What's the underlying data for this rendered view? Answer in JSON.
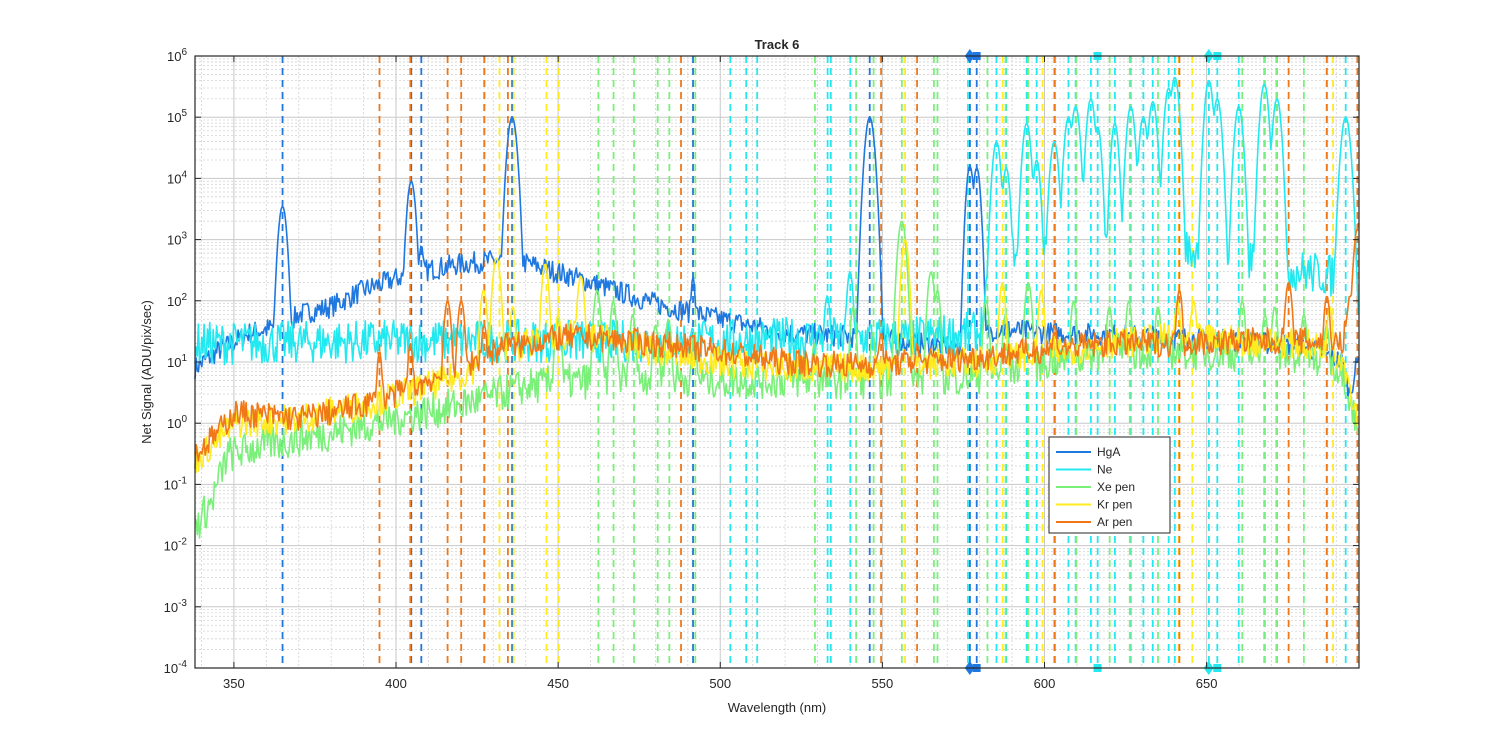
{
  "chart_data": {
    "type": "line",
    "title": "Track 6",
    "xlabel": "Wavelength (nm)",
    "ylabel": "Net Signal (ADU/pix/sec)",
    "xlim": [
      338,
      697
    ],
    "ylim": [
      0.0001,
      1000000
    ],
    "y_scale": "log",
    "grid": true,
    "legend_position": "lower-right",
    "x_ticks": [
      350,
      400,
      450,
      500,
      550,
      600,
      650
    ],
    "y_ticks": [
      {
        "value": 0.0001,
        "base": "10",
        "exp": "-4"
      },
      {
        "value": 0.001,
        "base": "10",
        "exp": "-3"
      },
      {
        "value": 0.01,
        "base": "10",
        "exp": "-2"
      },
      {
        "value": 0.1,
        "base": "10",
        "exp": "-1"
      },
      {
        "value": 1,
        "base": "10",
        "exp": "0"
      },
      {
        "value": 10,
        "base": "10",
        "exp": "1"
      },
      {
        "value": 100,
        "base": "10",
        "exp": "2"
      },
      {
        "value": 1000,
        "base": "10",
        "exp": "3"
      },
      {
        "value": 10000,
        "base": "10",
        "exp": "4"
      },
      {
        "value": 100000,
        "base": "10",
        "exp": "5"
      },
      {
        "value": 1000000,
        "base": "10",
        "exp": "6"
      }
    ],
    "series": [
      {
        "name": "HgA",
        "color": "#1f77e0",
        "baseline": [
          [
            338,
            8
          ],
          [
            345,
            15
          ],
          [
            355,
            30
          ],
          [
            366,
            40
          ],
          [
            370,
            60
          ],
          [
            380,
            80
          ],
          [
            390,
            150
          ],
          [
            402,
            250
          ],
          [
            410,
            320
          ],
          [
            420,
            400
          ],
          [
            430,
            450
          ],
          [
            436,
            470
          ],
          [
            445,
            350
          ],
          [
            460,
            200
          ],
          [
            480,
            90
          ],
          [
            500,
            50
          ],
          [
            520,
            30
          ],
          [
            546,
            25
          ],
          [
            560,
            20
          ],
          [
            575,
            18
          ],
          [
            585,
            35
          ],
          [
            600,
            30
          ],
          [
            620,
            28
          ],
          [
            640,
            25
          ],
          [
            660,
            22
          ],
          [
            680,
            18
          ],
          [
            692,
            10
          ],
          [
            694,
            3
          ],
          [
            697,
            12
          ]
        ],
        "peaks": [
          [
            365.0,
            3500,
            0.9
          ],
          [
            404.7,
            9000,
            0.9
          ],
          [
            407.8,
            800,
            0.6
          ],
          [
            435.8,
            100000,
            1.0
          ],
          [
            491.6,
            250,
            0.5
          ],
          [
            546.1,
            100000,
            1.0
          ],
          [
            577.0,
            16000,
            0.8
          ],
          [
            579.1,
            15000,
            0.8
          ]
        ],
        "noise": 0.18
      },
      {
        "name": "Ne",
        "color": "#22e8f0",
        "baseline": [
          [
            338,
            20
          ],
          [
            400,
            22
          ],
          [
            500,
            22
          ],
          [
            530,
            25
          ],
          [
            560,
            25
          ],
          [
            580,
            30
          ],
          [
            585,
            600
          ],
          [
            600,
            700
          ],
          [
            620,
            700
          ],
          [
            640,
            700
          ],
          [
            650,
            600
          ],
          [
            660,
            500
          ],
          [
            680,
            300
          ],
          [
            690,
            250
          ],
          [
            697,
            20
          ]
        ],
        "peaks": [
          [
            533,
            120,
            0.7
          ],
          [
            540,
            300,
            0.7
          ],
          [
            585.2,
            40000,
            0.9
          ],
          [
            588.2,
            15000,
            0.8
          ],
          [
            594.5,
            80000,
            0.9
          ],
          [
            597.6,
            20000,
            0.8
          ],
          [
            603.0,
            40000,
            0.9
          ],
          [
            607.4,
            100000,
            0.9
          ],
          [
            609.6,
            150000,
            0.9
          ],
          [
            614.3,
            200000,
            0.9
          ],
          [
            616.4,
            70000,
            0.8
          ],
          [
            621.7,
            80000,
            0.8
          ],
          [
            626.6,
            150000,
            0.9
          ],
          [
            630.5,
            100000,
            0.9
          ],
          [
            633.4,
            180000,
            0.9
          ],
          [
            638.3,
            300000,
            0.9
          ],
          [
            640.2,
            450000,
            0.9
          ],
          [
            650.7,
            400000,
            0.9
          ],
          [
            653.3,
            200000,
            0.9
          ],
          [
            659.9,
            150000,
            0.9
          ],
          [
            667.8,
            350000,
            0.9
          ],
          [
            671.7,
            200000,
            0.9
          ],
          [
            692.9,
            100000,
            1.0
          ]
        ],
        "noise": 0.35
      },
      {
        "name": "Xe pen",
        "color": "#7af07a",
        "baseline": [
          [
            338,
            0.02
          ],
          [
            343,
            0.05
          ],
          [
            348,
            0.3
          ],
          [
            360,
            0.45
          ],
          [
            380,
            0.7
          ],
          [
            400,
            1.2
          ],
          [
            420,
            2
          ],
          [
            440,
            4
          ],
          [
            460,
            5
          ],
          [
            480,
            6
          ],
          [
            500,
            5
          ],
          [
            520,
            5
          ],
          [
            540,
            5
          ],
          [
            560,
            5
          ],
          [
            580,
            6
          ],
          [
            600,
            10
          ],
          [
            620,
            15
          ],
          [
            640,
            15
          ],
          [
            660,
            14
          ],
          [
            680,
            12
          ],
          [
            692,
            8
          ],
          [
            697,
            0.6
          ]
        ],
        "peaks": [
          [
            450,
            50,
            0.8
          ],
          [
            462,
            150,
            0.8
          ],
          [
            467,
            100,
            0.7
          ],
          [
            473,
            60,
            0.7
          ],
          [
            480,
            40,
            0.7
          ],
          [
            484,
            50,
            0.7
          ],
          [
            492,
            30,
            0.6
          ],
          [
            529,
            20,
            0.6
          ],
          [
            541,
            80,
            0.7
          ],
          [
            547,
            30,
            0.6
          ],
          [
            556,
            2000,
            0.9
          ],
          [
            565,
            300,
            0.8
          ],
          [
            567,
            150,
            0.7
          ],
          [
            582,
            100,
            0.7
          ],
          [
            588,
            60,
            0.7
          ],
          [
            595,
            200,
            0.8
          ],
          [
            609,
            100,
            0.7
          ],
          [
            620,
            80,
            0.7
          ],
          [
            626,
            100,
            0.7
          ],
          [
            635,
            80,
            0.7
          ],
          [
            661,
            100,
            0.7
          ],
          [
            668,
            60,
            0.7
          ],
          [
            671,
            80,
            0.7
          ],
          [
            680,
            60,
            0.7
          ],
          [
            687,
            40,
            0.7
          ]
        ],
        "noise": 0.3
      },
      {
        "name": "Kr pen",
        "color": "#ffeb1e",
        "baseline": [
          [
            338,
            0.25
          ],
          [
            346,
            0.6
          ],
          [
            350,
            1.0
          ],
          [
            370,
            1.2
          ],
          [
            390,
            2
          ],
          [
            410,
            4
          ],
          [
            420,
            6
          ],
          [
            430,
            12
          ],
          [
            440,
            20
          ],
          [
            450,
            28
          ],
          [
            460,
            25
          ],
          [
            480,
            15
          ],
          [
            500,
            10
          ],
          [
            520,
            8
          ],
          [
            540,
            8
          ],
          [
            560,
            9
          ],
          [
            580,
            10
          ],
          [
            600,
            14
          ],
          [
            620,
            20
          ],
          [
            640,
            25
          ],
          [
            660,
            22
          ],
          [
            680,
            20
          ],
          [
            692,
            12
          ],
          [
            697,
            1
          ]
        ],
        "peaks": [
          [
            427,
            150,
            0.8
          ],
          [
            431,
            500,
            0.9
          ],
          [
            436,
            80,
            0.7
          ],
          [
            446,
            400,
            0.8
          ],
          [
            450,
            60,
            0.7
          ],
          [
            457,
            250,
            0.8
          ],
          [
            465,
            40,
            0.6
          ],
          [
            473,
            30,
            0.6
          ],
          [
            557,
            1000,
            0.8
          ],
          [
            587,
            200,
            0.7
          ],
          [
            599,
            150,
            0.7
          ],
          [
            641,
            100,
            0.7
          ],
          [
            646,
            100,
            0.7
          ],
          [
            688,
            80,
            0.7
          ]
        ],
        "noise": 0.25
      },
      {
        "name": "Ar pen",
        "color": "#f07818",
        "baseline": [
          [
            338,
            0.3
          ],
          [
            346,
            0.8
          ],
          [
            350,
            1.5
          ],
          [
            370,
            1.2
          ],
          [
            380,
            1.5
          ],
          [
            390,
            2
          ],
          [
            400,
            3
          ],
          [
            410,
            5
          ],
          [
            420,
            8
          ],
          [
            430,
            15
          ],
          [
            440,
            20
          ],
          [
            450,
            25
          ],
          [
            460,
            25
          ],
          [
            480,
            20
          ],
          [
            500,
            15
          ],
          [
            520,
            10
          ],
          [
            540,
            9
          ],
          [
            560,
            10
          ],
          [
            580,
            12
          ],
          [
            600,
            16
          ],
          [
            620,
            20
          ],
          [
            640,
            20
          ],
          [
            660,
            22
          ],
          [
            680,
            22
          ],
          [
            692,
            20
          ],
          [
            695,
            200
          ],
          [
            697,
            1500
          ]
        ],
        "peaks": [
          [
            394.9,
            15,
            0.6
          ],
          [
            404.4,
            20,
            0.6
          ],
          [
            415.9,
            100,
            0.8
          ],
          [
            420.1,
            100,
            0.8
          ],
          [
            427.2,
            40,
            0.7
          ],
          [
            434,
            30,
            0.6
          ],
          [
            487.9,
            20,
            0.6
          ],
          [
            549.6,
            30,
            0.6
          ],
          [
            560.7,
            20,
            0.6
          ],
          [
            603.2,
            40,
            0.6
          ],
          [
            641.6,
            150,
            0.7
          ],
          [
            675.3,
            200,
            0.8
          ],
          [
            687.1,
            120,
            0.7
          ],
          [
            696.5,
            1500,
            0.8
          ]
        ],
        "noise": 0.22
      }
    ],
    "reference_lines": [
      {
        "series": "HgA",
        "wavelengths": [
          365.0,
          404.7,
          407.8,
          435.8,
          491.6,
          546.1,
          577.0,
          579.1
        ]
      },
      {
        "series": "Ne",
        "wavelengths": [
          503.1,
          508.0,
          511.4,
          533.1,
          534.1,
          540.1,
          576.4,
          585.2,
          588.2,
          594.5,
          597.6,
          603.0,
          607.4,
          609.6,
          614.3,
          616.4,
          621.7,
          626.6,
          630.5,
          633.4,
          638.3,
          640.2,
          650.7,
          653.3,
          659.9,
          667.8,
          671.7,
          692.9
        ]
      },
      {
        "series": "Xe pen",
        "wavelengths": [
          450.1,
          462.4,
          467.1,
          473.4,
          480.7,
          484.3,
          492.3,
          529.2,
          541.9,
          547.3,
          556.0,
          565.9,
          567.0,
          582.4,
          588.0,
          595.0,
          609.8,
          620.1,
          626.3,
          635.0,
          661.0,
          668.0,
          671.5,
          680.0,
          687.0
        ]
      },
      {
        "series": "Kr pen",
        "wavelengths": [
          427.4,
          431.9,
          436.3,
          446.4,
          450.2,
          557.0,
          587.1,
          599.4,
          641.4,
          645.6,
          689.0
        ]
      },
      {
        "series": "Ar pen",
        "wavelengths": [
          394.9,
          404.4,
          415.9,
          420.1,
          427.2,
          434.5,
          487.9,
          549.6,
          560.7,
          603.2,
          641.6,
          675.3,
          687.1,
          696.5
        ]
      }
    ],
    "markers": [
      {
        "series": "HgA",
        "shape": "diamond",
        "x": 576.96
      },
      {
        "series": "HgA",
        "shape": "square",
        "x": 579.07
      },
      {
        "series": "Ne",
        "shape": "square",
        "x": 616.36
      },
      {
        "series": "Ne",
        "shape": "diamond",
        "x": 650.65
      },
      {
        "series": "Ne",
        "shape": "square",
        "x": 653.29
      }
    ]
  }
}
